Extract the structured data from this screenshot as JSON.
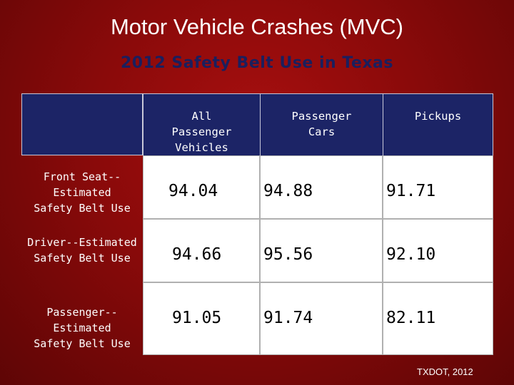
{
  "title": "Motor Vehicle Crashes (MVC)",
  "subtitle": "2012 Safety Belt Use in Texas",
  "table": {
    "headers": [
      "All\nPassenger\nVehicles",
      "Passenger\nCars",
      "Pickups"
    ],
    "rows": [
      {
        "label": "Front Seat--\nEstimated\nSafety Belt Use",
        "values": [
          "94.04",
          "94.88",
          "91.71"
        ]
      },
      {
        "label": "Driver--Estimated\nSafety Belt Use",
        "values": [
          "94.66",
          "95.56",
          "92.10"
        ]
      },
      {
        "label": "Passenger--\nEstimated\nSafety Belt Use",
        "values": [
          "91.05",
          "91.74",
          "82.11"
        ]
      }
    ]
  },
  "footer": "TXDOT, 2012",
  "colors": {
    "background": "#8a0a0a",
    "header": "#1c2466",
    "subtitle": "#1a1f5e"
  }
}
